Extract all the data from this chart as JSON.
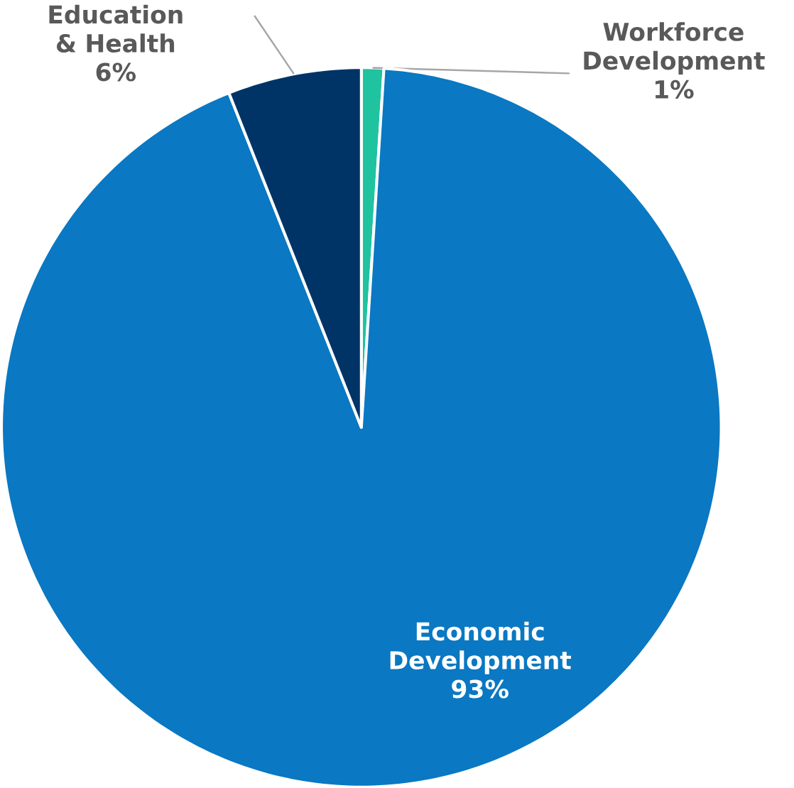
{
  "chart_data": {
    "type": "pie",
    "categories": [
      "Workforce Development",
      "Economic Development",
      "Education & Health"
    ],
    "values": [
      1,
      93,
      6
    ],
    "colors": [
      "#1fc3a0",
      "#0a78c2",
      "#003466"
    ],
    "value_labels": [
      "1%",
      "93%",
      "6%"
    ]
  }
}
